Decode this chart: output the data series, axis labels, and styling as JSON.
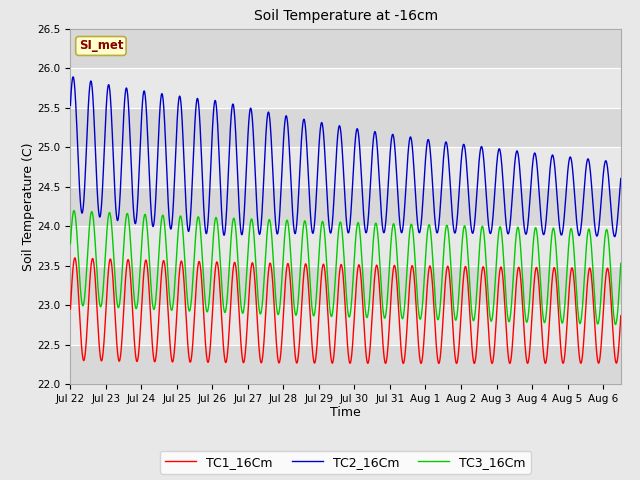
{
  "title": "Soil Temperature at -16cm",
  "xlabel": "Time",
  "ylabel": "Soil Temperature (C)",
  "ylim": [
    22.0,
    26.5
  ],
  "annotation_text": "SI_met",
  "annotation_facecolor": "#ffffcc",
  "annotation_edgecolor": "#bbaa44",
  "annotation_textcolor": "#880000",
  "bg_color": "#e8e8e8",
  "plot_bg_color": "#e8e8e8",
  "grid_color": "#ffffff",
  "line_colors": [
    "#ff0000",
    "#0000cc",
    "#00cc00"
  ],
  "series_labels": [
    "TC1_16Cm",
    "TC2_16Cm",
    "TC3_16Cm"
  ],
  "tick_labels": [
    "Jul 22",
    "Jul 23",
    "Jul 24",
    "Jul 25",
    "Jul 26",
    "Jul 27",
    "Jul 28",
    "Jul 29",
    "Jul 30",
    "Jul 31",
    "Aug 1",
    "Aug 2",
    "Aug 3",
    "Aug 4",
    "Aug 5",
    "Aug 6"
  ],
  "tick_positions": [
    0,
    1,
    2,
    3,
    4,
    5,
    6,
    7,
    8,
    9,
    10,
    11,
    12,
    13,
    14,
    15
  ],
  "yticks": [
    22.0,
    22.5,
    23.0,
    23.5,
    24.0,
    24.5,
    25.0,
    25.5,
    26.0,
    26.5
  ]
}
